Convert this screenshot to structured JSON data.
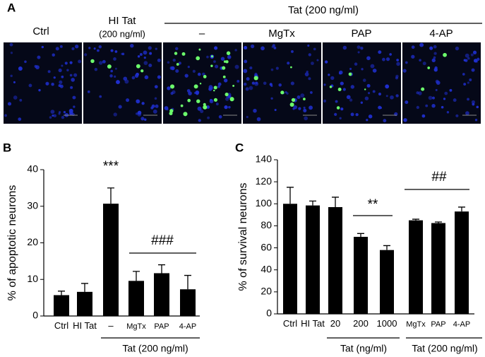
{
  "panel_a": {
    "label": "A",
    "columns": [
      "Ctrl",
      "HI Tat"
    ],
    "hi_tat_dose": "(200 ng/ml)",
    "tat_header": "Tat (200 ng/ml)",
    "tat_columns": [
      "–",
      "MgTx",
      "PAP",
      "4-AP"
    ]
  },
  "chart_data": [
    {
      "type": "bar",
      "panel": "B",
      "ylabel": "% of apoptotic neurons",
      "categories": [
        "Ctrl",
        "HI Tat",
        "–",
        "MgTx",
        "PAP",
        "4-AP"
      ],
      "values": [
        5.7,
        6.6,
        30.7,
        9.6,
        11.7,
        7.3
      ],
      "errors": [
        1.1,
        2.3,
        4.3,
        2.6,
        2.3,
        3.8
      ],
      "color": "#000000",
      "ylim": [
        0,
        40
      ],
      "yticks": [
        0,
        10,
        20,
        30,
        40
      ],
      "annotations": [
        "***",
        "###"
      ],
      "groups": [
        "Tat (200 ng/ml)"
      ]
    },
    {
      "type": "bar",
      "panel": "C",
      "ylabel": "% of survival neurons",
      "categories": [
        "Ctrl",
        "HI Tat",
        "20",
        "200",
        "1000",
        "MgTx",
        "PAP",
        "4-AP"
      ],
      "values": [
        100,
        98.5,
        97,
        70,
        58,
        85,
        82.5,
        93
      ],
      "errors": [
        15,
        4,
        9,
        3,
        4,
        1,
        1,
        4
      ],
      "color": "#000000",
      "ylim": [
        0,
        140
      ],
      "yticks": [
        0,
        20,
        40,
        60,
        80,
        100,
        120,
        140
      ],
      "annotations": [
        "**",
        "##"
      ],
      "groups": [
        "Tat (ng/ml)",
        "Tat (200 ng/ml)"
      ]
    }
  ]
}
